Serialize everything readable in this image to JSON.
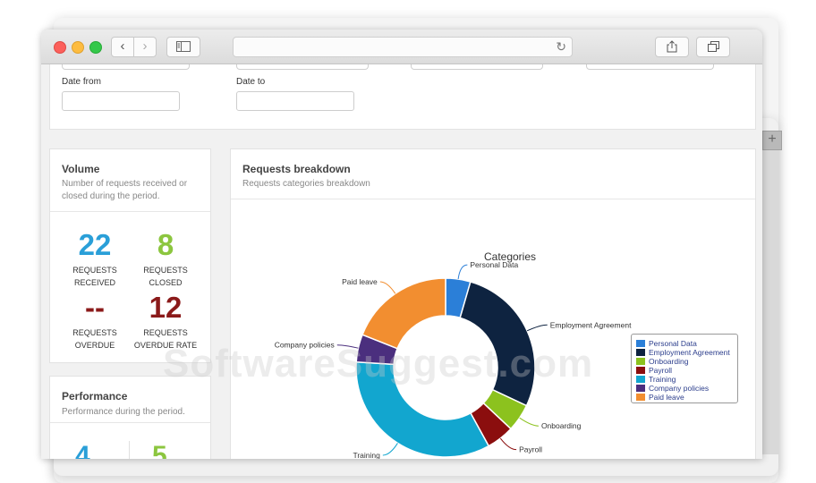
{
  "filters": {
    "date_from_label": "Date from",
    "date_to_label": "Date to"
  },
  "volume": {
    "title": "Volume",
    "description_line1": "Number of requests received or",
    "description_line2": "closed during the period.",
    "stats": [
      {
        "value": "22",
        "label1": "REQUESTS",
        "label2": "RECEIVED",
        "color": "#2a9fd8"
      },
      {
        "value": "8",
        "label1": "REQUESTS",
        "label2": "CLOSED",
        "color": "#8cc63f"
      },
      {
        "value": "--",
        "label1": "REQUESTS",
        "label2": "OVERDUE",
        "color": "#8b1a1a"
      },
      {
        "value": "12",
        "label1": "REQUESTS",
        "label2": "OVERDUE RATE",
        "color": "#8b1a1a"
      }
    ]
  },
  "performance": {
    "title": "Performance",
    "description": "Performance during the period.",
    "values": [
      {
        "value": "4",
        "color": "#2a9fd8"
      },
      {
        "value": "5",
        "color": "#8cc63f"
      }
    ]
  },
  "breakdown": {
    "title": "Requests breakdown",
    "subtitle": "Requests categories breakdown"
  },
  "chart_data": {
    "type": "pie",
    "title": "Categories",
    "categories": [
      "Personal Data",
      "Employment Agreement",
      "Onboarding",
      "Payroll",
      "Training",
      "Company policies",
      "Paid leave"
    ],
    "values": [
      4.5,
      27.5,
      5,
      5,
      34,
      5,
      19
    ],
    "colors": [
      "#2b7fd8",
      "#0e2340",
      "#8cc21e",
      "#8b0e0e",
      "#12a6cf",
      "#4b2f7e",
      "#f28e30"
    ],
    "legend_position": "right"
  },
  "watermark": "SoftwareSuggest.com"
}
